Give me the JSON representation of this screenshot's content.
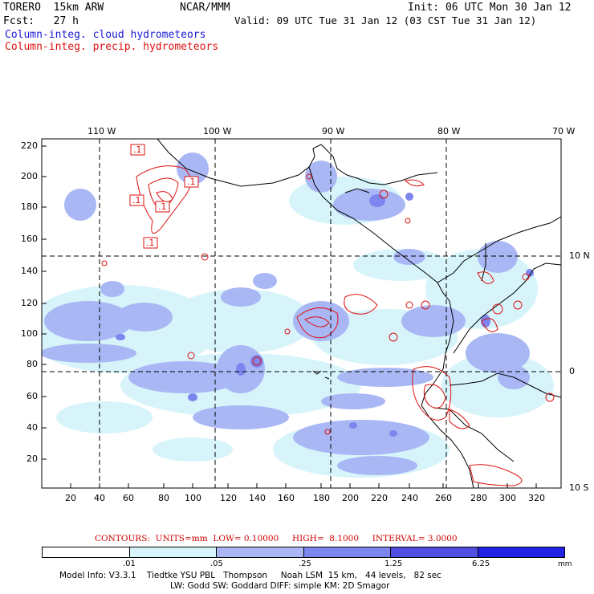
{
  "header": {
    "model": "TORERO  15km ARW",
    "org": "NCAR/MMM",
    "init": "Init: 06 UTC Mon 30 Jan 12",
    "fcst": "Fcst:   27 h",
    "valid": "Valid: 09 UTC Tue 31 Jan 12 (03 CST Tue 31 Jan 12)",
    "field_cloud": "Column-integ. cloud hydrometeors",
    "field_precip": "Column-integ. precip. hydrometeors"
  },
  "map": {
    "lon_labels": [
      "110 W",
      "100 W",
      "90 W",
      "80 W",
      "70 W"
    ],
    "lat_labels": [
      "10 N",
      "0",
      "10 S"
    ],
    "y_ticks": [
      "220",
      "200",
      "180",
      "160",
      "140",
      "120",
      "100",
      "80",
      "60",
      "40",
      "20"
    ],
    "x_ticks": [
      "20",
      "40",
      "60",
      "80",
      "100",
      "120",
      "140",
      "160",
      "180",
      "200",
      "220",
      "240",
      "260",
      "280",
      "300",
      "320"
    ],
    "contour_labels": [
      ".1",
      ".1",
      ".1",
      ".1",
      ".1"
    ]
  },
  "legend": {
    "contours_line": "CONTOURS:  UNITS=mm  LOW= 0.10000     HIGH=  8.1000     INTERVAL= 3.0000",
    "colorbar_values": [
      ".01",
      ".05",
      ".25",
      "1.25",
      "6.25"
    ],
    "units": "mm",
    "colors": [
      "#ffffff",
      "#d6f4fa",
      "#a9b8f5",
      "#7d86ee",
      "#4f4fe2",
      "#2323e6"
    ]
  },
  "footer": {
    "line1": "Model Info: V3.3.1    Tiedtke YSU PBL   Thompson     Noah LSM  15 km,   44 levels,   82 sec",
    "line2": "LW: Godd SW: Goddard DIFF: simple KM: 2D Smagor"
  },
  "colors": {
    "cloud_light": "#d6f4fa",
    "cloud_mid": "#a9b8f5",
    "cloud_dark": "#7d86ee",
    "precip_contour": "#e01010",
    "title_blue": "#1a1ad6",
    "title_red": "#e01010"
  }
}
